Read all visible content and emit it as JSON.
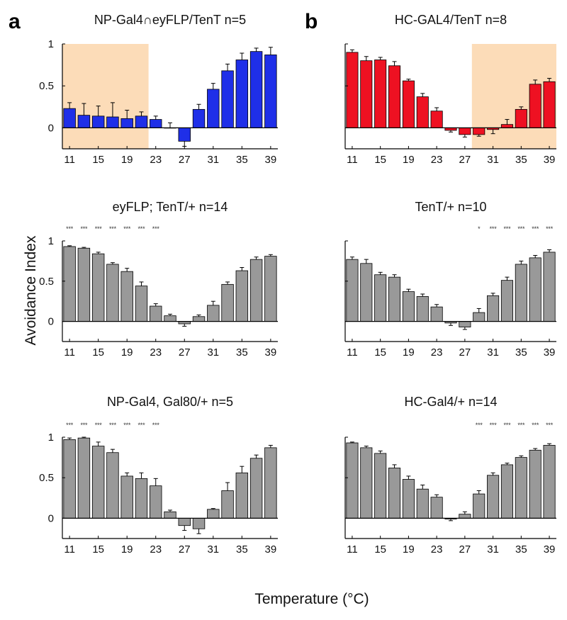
{
  "figure": {
    "panel_letters": [
      "a",
      "b"
    ],
    "y_axis_label": "Avoidance Index",
    "x_axis_label": "Temperature (°C)"
  },
  "chart_data": [
    {
      "type": "bar",
      "panel": "a",
      "title": "NP-Gal4∩eyFLP/TenT    n=5",
      "x": [
        11,
        13,
        15,
        17,
        19,
        21,
        23,
        25,
        27,
        29,
        31,
        33,
        35,
        37,
        39
      ],
      "xticks": [
        "11",
        "15",
        "19",
        "23",
        "27",
        "31",
        "35",
        "39"
      ],
      "yticks": [
        "0",
        "0.5",
        "1"
      ],
      "ylim": [
        -0.25,
        1
      ],
      "values": [
        0.23,
        0.15,
        0.14,
        0.13,
        0.11,
        0.14,
        0.1,
        0.0,
        -0.16,
        0.22,
        0.46,
        0.68,
        0.81,
        0.91,
        0.87
      ],
      "errors": [
        0.07,
        0.14,
        0.12,
        0.17,
        0.1,
        0.05,
        0.04,
        0.06,
        0.06,
        0.06,
        0.07,
        0.08,
        0.08,
        0.04,
        0.09
      ],
      "color": "#1f2fe8",
      "shaded_range": [
        10,
        22
      ],
      "significance": []
    },
    {
      "type": "bar",
      "panel": "b",
      "title": "HC-GAL4/TenT    n=8",
      "x": [
        11,
        13,
        15,
        17,
        19,
        21,
        23,
        25,
        27,
        29,
        31,
        33,
        35,
        37,
        39
      ],
      "xticks": [
        "11",
        "15",
        "19",
        "23",
        "27",
        "31",
        "35",
        "39"
      ],
      "yticks": [],
      "ylim": [
        -0.25,
        1
      ],
      "values": [
        0.9,
        0.8,
        0.81,
        0.74,
        0.56,
        0.37,
        0.2,
        -0.03,
        -0.08,
        -0.08,
        -0.02,
        0.04,
        0.22,
        0.52,
        0.55
      ],
      "errors": [
        0.03,
        0.05,
        0.03,
        0.05,
        0.02,
        0.04,
        0.04,
        0.02,
        0.03,
        0.02,
        0.05,
        0.06,
        0.03,
        0.05,
        0.04
      ],
      "color": "#ee1122",
      "shaded_range": [
        28,
        40
      ],
      "significance": []
    },
    {
      "type": "bar",
      "panel": "a",
      "title": "eyFLP; TenT/+    n=14",
      "x": [
        11,
        13,
        15,
        17,
        19,
        21,
        23,
        25,
        27,
        29,
        31,
        33,
        35,
        37,
        39
      ],
      "xticks": [
        "11",
        "15",
        "19",
        "23",
        "27",
        "31",
        "35",
        "39"
      ],
      "yticks": [
        "0",
        "0.5",
        "1"
      ],
      "ylim": [
        -0.25,
        1
      ],
      "values": [
        0.93,
        0.91,
        0.84,
        0.71,
        0.62,
        0.44,
        0.19,
        0.07,
        -0.03,
        0.06,
        0.2,
        0.46,
        0.63,
        0.77,
        0.81
      ],
      "errors": [
        0.01,
        0.01,
        0.02,
        0.02,
        0.04,
        0.05,
        0.03,
        0.02,
        0.03,
        0.02,
        0.05,
        0.03,
        0.04,
        0.03,
        0.02
      ],
      "color": "#999999",
      "shaded_range": null,
      "significance": [
        "***",
        "***",
        "***",
        "***",
        "***",
        "***",
        "***",
        "",
        "",
        "",
        "",
        "",
        "",
        "",
        ""
      ]
    },
    {
      "type": "bar",
      "panel": "b",
      "title": "TenT/+    n=10",
      "x": [
        11,
        13,
        15,
        17,
        19,
        21,
        23,
        25,
        27,
        29,
        31,
        33,
        35,
        37,
        39
      ],
      "xticks": [
        "11",
        "15",
        "19",
        "23",
        "27",
        "31",
        "35",
        "39"
      ],
      "yticks": [],
      "ylim": [
        -0.25,
        1
      ],
      "values": [
        0.77,
        0.72,
        0.58,
        0.55,
        0.37,
        0.31,
        0.18,
        -0.02,
        -0.07,
        0.11,
        0.32,
        0.51,
        0.71,
        0.79,
        0.86
      ],
      "errors": [
        0.03,
        0.05,
        0.03,
        0.03,
        0.03,
        0.03,
        0.03,
        0.03,
        0.03,
        0.05,
        0.03,
        0.04,
        0.04,
        0.03,
        0.03
      ],
      "color": "#999999",
      "shaded_range": null,
      "significance": [
        "",
        "",
        "",
        "",
        "",
        "",
        "",
        "",
        "",
        "*",
        "***",
        "***",
        "***",
        "***",
        "***"
      ]
    },
    {
      "type": "bar",
      "panel": "a",
      "title": "NP-Gal4, Gal80/+    n=5",
      "x": [
        11,
        13,
        15,
        17,
        19,
        21,
        23,
        25,
        27,
        29,
        31,
        33,
        35,
        37,
        39
      ],
      "xticks": [
        "11",
        "15",
        "19",
        "23",
        "27",
        "31",
        "35",
        "39"
      ],
      "yticks": [
        "0",
        "0.5",
        "1"
      ],
      "ylim": [
        -0.25,
        1
      ],
      "values": [
        0.97,
        0.99,
        0.89,
        0.81,
        0.52,
        0.49,
        0.4,
        0.08,
        -0.09,
        -0.13,
        0.11,
        0.34,
        0.56,
        0.74,
        0.87
      ],
      "errors": [
        0.02,
        0.01,
        0.05,
        0.04,
        0.04,
        0.07,
        0.09,
        0.02,
        0.06,
        0.06,
        0.01,
        0.1,
        0.08,
        0.04,
        0.03
      ],
      "color": "#999999",
      "shaded_range": null,
      "significance": [
        "***",
        "***",
        "***",
        "***",
        "***",
        "***",
        "***",
        "",
        "",
        "",
        "",
        "",
        "",
        "",
        ""
      ]
    },
    {
      "type": "bar",
      "panel": "b",
      "title": "HC-Gal4/+    n=14",
      "x": [
        11,
        13,
        15,
        17,
        19,
        21,
        23,
        25,
        27,
        29,
        31,
        33,
        35,
        37,
        39
      ],
      "xticks": [
        "11",
        "15",
        "19",
        "23",
        "27",
        "31",
        "35",
        "39"
      ],
      "yticks": [],
      "ylim": [
        -0.25,
        1
      ],
      "values": [
        0.93,
        0.87,
        0.8,
        0.62,
        0.48,
        0.36,
        0.26,
        -0.01,
        0.05,
        0.3,
        0.53,
        0.66,
        0.75,
        0.84,
        0.9
      ],
      "errors": [
        0.01,
        0.02,
        0.03,
        0.04,
        0.04,
        0.05,
        0.03,
        0.02,
        0.03,
        0.04,
        0.03,
        0.02,
        0.02,
        0.02,
        0.02
      ],
      "color": "#999999",
      "shaded_range": null,
      "significance": [
        "",
        "",
        "",
        "",
        "",
        "",
        "",
        "",
        "",
        "***",
        "***",
        "***",
        "***",
        "***",
        "***"
      ]
    }
  ]
}
